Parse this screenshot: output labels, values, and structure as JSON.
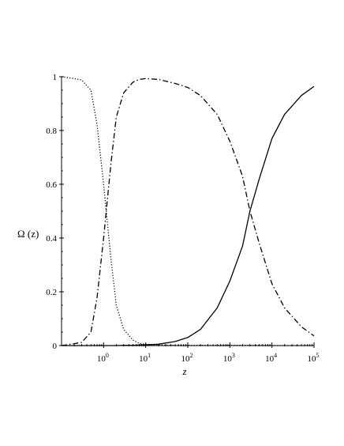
{
  "chart_data": {
    "type": "line",
    "title": "",
    "xlabel": "z",
    "ylabel": "Ω (z)",
    "xscale": "log",
    "xlim": [
      0.1,
      100000
    ],
    "ylim": [
      0,
      1
    ],
    "grid": false,
    "legend": "none",
    "x_ticks": [
      {
        "value": 1,
        "base": "10",
        "exp": "0"
      },
      {
        "value": 10,
        "base": "10",
        "exp": "1"
      },
      {
        "value": 100,
        "base": "10",
        "exp": "2"
      },
      {
        "value": 1000,
        "base": "10",
        "exp": "3"
      },
      {
        "value": 10000,
        "base": "10",
        "exp": "4"
      },
      {
        "value": 100000,
        "base": "10",
        "exp": "5"
      }
    ],
    "y_ticks": [
      {
        "value": 0,
        "label": "0"
      },
      {
        "value": 0.2,
        "label": "0.2"
      },
      {
        "value": 0.4,
        "label": "0.4"
      },
      {
        "value": 0.6,
        "label": "0.6"
      },
      {
        "value": 0.8,
        "label": "0.8"
      },
      {
        "value": 1,
        "label": "1"
      }
    ],
    "x": [
      0.1,
      0.2,
      0.3,
      0.5,
      0.7,
      1,
      1.5,
      2,
      3,
      5,
      7,
      10,
      20,
      50,
      100,
      200,
      500,
      1000,
      2000,
      3000,
      5000,
      10000,
      20000,
      50000,
      100000
    ],
    "series": [
      {
        "style": "dotted",
        "color": "#000000",
        "values": [
          1.0,
          0.993,
          0.988,
          0.95,
          0.82,
          0.6,
          0.32,
          0.15,
          0.06,
          0.02,
          0.008,
          0.005,
          0.002,
          0.001,
          0.001,
          0.001,
          0.001,
          0.001,
          0.001,
          0.001,
          0.001,
          0.0,
          0.0,
          0.0,
          0.0
        ]
      },
      {
        "style": "dashdot",
        "color": "#000000",
        "values": [
          0.0,
          0.007,
          0.012,
          0.05,
          0.18,
          0.4,
          0.68,
          0.85,
          0.94,
          0.98,
          0.99,
          0.993,
          0.99,
          0.975,
          0.96,
          0.93,
          0.86,
          0.76,
          0.63,
          0.5,
          0.38,
          0.23,
          0.14,
          0.07,
          0.036
        ]
      },
      {
        "style": "solid",
        "color": "#000000",
        "values": [
          0.0,
          0.0,
          0.0,
          0.0,
          0.0,
          0.0,
          0.0,
          0.0,
          0.001,
          0.001,
          0.002,
          0.003,
          0.005,
          0.015,
          0.03,
          0.06,
          0.14,
          0.24,
          0.37,
          0.5,
          0.62,
          0.77,
          0.86,
          0.93,
          0.964
        ]
      }
    ]
  }
}
